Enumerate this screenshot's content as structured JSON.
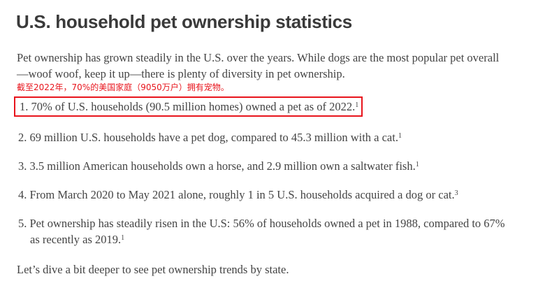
{
  "title": "U.S. household pet ownership statistics",
  "intro": [
    "Pet ownership has grown steadily in the U.S. over the years. While dogs are the most popular pet overall",
    "—woof woof, keep it up—there is plenty of diversity in pet ownership."
  ],
  "annotation": "截至2022年，70%的美国家庭（9050万户）拥有宠物。",
  "highlight_color": "#e8141c",
  "items": [
    {
      "num": "1.",
      "text": "70% of U.S. households (90.5 million homes) owned a pet as of 2022.",
      "sup": "1"
    },
    {
      "num": "2.",
      "text": "69 million U.S. households have a pet dog, compared to 45.3 million with a cat.",
      "sup": "1"
    },
    {
      "num": "3.",
      "text": "3.5 million American households own a horse, and 2.9 million own a saltwater fish.",
      "sup": "1"
    },
    {
      "num": "4.",
      "text": "From March 2020 to May 2021 alone, roughly 1 in 5 U.S. households acquired a dog or cat.",
      "sup": "3"
    },
    {
      "num": "5.",
      "text": "Pet ownership has steadily risen in the U.S: 56% of households owned a pet in 1988, compared to 67%",
      "text2": "as recently as 2019.",
      "sup": "1"
    }
  ],
  "outro": "Let’s dive a bit deeper to see pet ownership trends by state."
}
